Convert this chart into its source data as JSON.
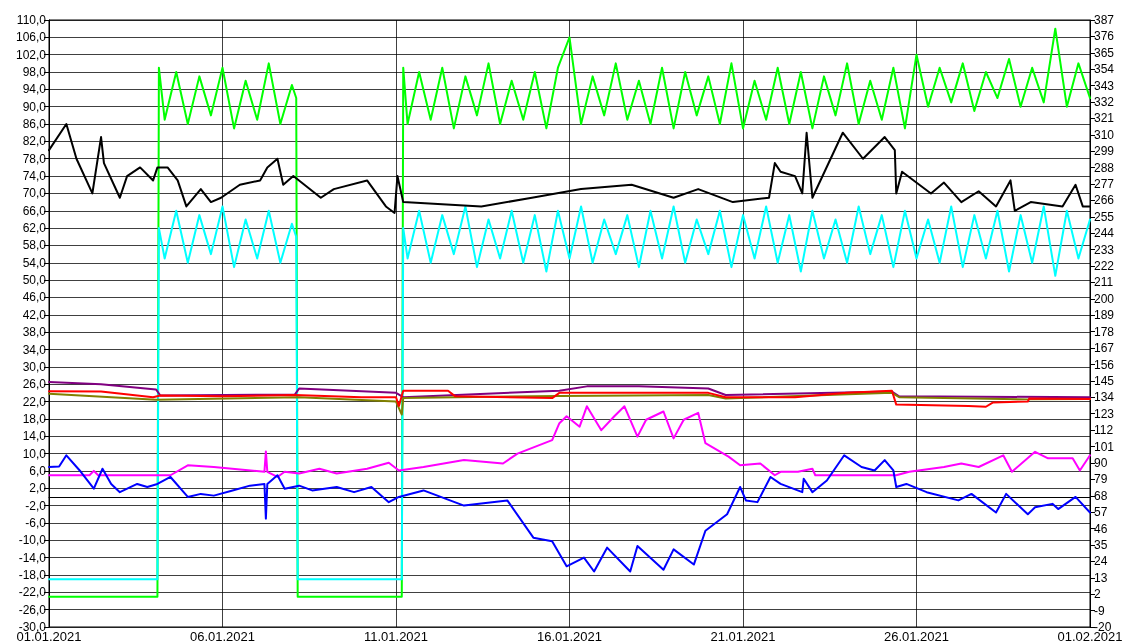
{
  "chart_data": {
    "type": "line",
    "grid": true,
    "line_style": "solid",
    "xlim": [
      "2021-01-01",
      "2021-01-31"
    ],
    "xticks": [
      {
        "value": "2021-01-01",
        "label": "01.01.2021"
      },
      {
        "value": "2021-01-06",
        "label": "06.01.2021"
      },
      {
        "value": "2021-01-11",
        "label": "11.01.2021"
      },
      {
        "value": "2021-01-16",
        "label": "16.01.2021"
      },
      {
        "value": "2021-01-21",
        "label": "21.01.2021"
      },
      {
        "value": "2021-01-26",
        "label": "26.01.2021"
      },
      {
        "value": "2021-01-31",
        "label": "01.02.2021"
      }
    ],
    "ylim": [
      -30,
      110
    ],
    "yticks": [
      {
        "value": -30,
        "label": "-30,0"
      },
      {
        "value": -26,
        "label": "-26,0"
      },
      {
        "value": -22,
        "label": "-22,0"
      },
      {
        "value": -18,
        "label": "-18,0"
      },
      {
        "value": -14,
        "label": "-14,0"
      },
      {
        "value": -10,
        "label": "-10,0"
      },
      {
        "value": -6,
        "label": "-6,0"
      },
      {
        "value": -2,
        "label": "-2,0"
      },
      {
        "value": 2,
        "label": "2,0"
      },
      {
        "value": 6,
        "label": "6,0"
      },
      {
        "value": 10,
        "label": "10,0"
      },
      {
        "value": 14,
        "label": "14,0"
      },
      {
        "value": 18,
        "label": "18,0"
      },
      {
        "value": 22,
        "label": "22,0"
      },
      {
        "value": 26,
        "label": "26,0"
      },
      {
        "value": 30,
        "label": "30,0"
      },
      {
        "value": 34,
        "label": "34,0"
      },
      {
        "value": 38,
        "label": "38,0"
      },
      {
        "value": 42,
        "label": "42,0"
      },
      {
        "value": 46,
        "label": "46,0"
      },
      {
        "value": 50,
        "label": "50,0"
      },
      {
        "value": 54,
        "label": "54,0"
      },
      {
        "value": 58,
        "label": "58,0"
      },
      {
        "value": 62,
        "label": "62,0"
      },
      {
        "value": 66,
        "label": "66,0"
      },
      {
        "value": 70,
        "label": "70,0"
      },
      {
        "value": 74,
        "label": "74,0"
      },
      {
        "value": 78,
        "label": "78,0"
      },
      {
        "value": 82,
        "label": "82,0"
      },
      {
        "value": 86,
        "label": "86,0"
      },
      {
        "value": 90,
        "label": "90,0"
      },
      {
        "value": 94,
        "label": "94,0"
      },
      {
        "value": 98,
        "label": "98,0"
      },
      {
        "value": 102,
        "label": "102,0"
      },
      {
        "value": 106,
        "label": "106,0"
      },
      {
        "value": 110,
        "label": "110,0"
      }
    ],
    "y2lim": [
      -20,
      387
    ],
    "y2ticks": [
      -20,
      -9,
      2,
      13,
      24,
      35,
      46,
      57,
      68,
      79,
      90,
      101,
      112,
      123,
      134,
      145,
      156,
      167,
      178,
      189,
      200,
      211,
      222,
      233,
      244,
      255,
      266,
      277,
      288,
      299,
      310,
      321,
      332,
      343,
      354,
      365,
      376,
      387
    ],
    "series": [
      {
        "color": "#00ff00",
        "x": [
          "2021-01-01T00:00",
          "2021-01-04T03:00",
          "2021-01-04T04:00",
          "2021-01-04T08:00",
          "2021-01-04T16:00",
          "2021-01-05T00:00",
          "2021-01-05T08:00",
          "2021-01-05T16:00",
          "2021-01-06T00:00",
          "2021-01-06T08:00",
          "2021-01-06T16:00",
          "2021-01-07T00:00",
          "2021-01-07T08:00",
          "2021-01-07T16:00",
          "2021-01-08T00:00",
          "2021-01-08T03:00",
          "2021-01-08T04:00",
          "2021-01-11T04:00",
          "2021-01-11T05:00",
          "2021-01-11T08:00",
          "2021-01-11T16:00",
          "2021-01-12T00:00",
          "2021-01-12T08:00",
          "2021-01-12T16:00",
          "2021-01-13T00:00",
          "2021-01-13T08:00",
          "2021-01-13T16:00",
          "2021-01-14T00:00",
          "2021-01-14T08:00",
          "2021-01-14T16:00",
          "2021-01-15T00:00",
          "2021-01-15T08:00",
          "2021-01-15T16:00",
          "2021-01-16T00:00",
          "2021-01-16T08:00",
          "2021-01-16T16:00",
          "2021-01-17T00:00",
          "2021-01-17T08:00",
          "2021-01-17T16:00",
          "2021-01-18T00:00",
          "2021-01-18T08:00",
          "2021-01-18T16:00",
          "2021-01-19T00:00",
          "2021-01-19T08:00",
          "2021-01-19T16:00",
          "2021-01-20T00:00",
          "2021-01-20T08:00",
          "2021-01-20T16:00",
          "2021-01-21T00:00",
          "2021-01-21T08:00",
          "2021-01-21T16:00",
          "2021-01-22T00:00",
          "2021-01-22T08:00",
          "2021-01-22T16:00",
          "2021-01-23T00:00",
          "2021-01-23T08:00",
          "2021-01-23T16:00",
          "2021-01-24T00:00",
          "2021-01-24T08:00",
          "2021-01-24T16:00",
          "2021-01-25T00:00",
          "2021-01-25T08:00",
          "2021-01-25T16:00",
          "2021-01-26T00:00",
          "2021-01-26T08:00",
          "2021-01-26T16:00",
          "2021-01-27T00:00",
          "2021-01-27T08:00",
          "2021-01-27T16:00",
          "2021-01-28T00:00",
          "2021-01-28T08:00",
          "2021-01-28T16:00",
          "2021-01-29T00:00",
          "2021-01-29T08:00",
          "2021-01-29T16:00",
          "2021-01-30T00:00",
          "2021-01-30T08:00",
          "2021-01-30T16:00",
          "2021-01-31T00:00"
        ],
        "values": [
          -23,
          -23,
          99,
          87,
          98,
          86,
          97,
          88,
          99,
          85,
          96,
          87,
          100,
          86,
          95,
          92,
          -23,
          -23,
          99,
          86,
          98,
          87,
          99,
          85,
          97,
          88,
          100,
          86,
          96,
          87,
          98,
          85,
          99,
          106,
          86,
          97,
          88,
          100,
          87,
          96,
          86,
          99,
          85,
          98,
          88,
          97,
          86,
          100,
          85,
          96,
          87,
          99,
          86,
          98,
          85,
          97,
          88,
          100,
          86,
          96,
          87,
          99,
          85,
          102,
          90,
          99,
          91,
          100,
          89,
          98,
          92,
          101,
          90,
          99,
          91,
          108,
          90,
          100,
          92
        ]
      },
      {
        "color": "#00ffff",
        "x": [
          "2021-01-01T00:00",
          "2021-01-04T03:00",
          "2021-01-04T04:00",
          "2021-01-04T08:00",
          "2021-01-04T16:00",
          "2021-01-05T00:00",
          "2021-01-05T08:00",
          "2021-01-05T16:00",
          "2021-01-06T00:00",
          "2021-01-06T08:00",
          "2021-01-06T16:00",
          "2021-01-07T00:00",
          "2021-01-07T08:00",
          "2021-01-07T16:00",
          "2021-01-08T00:00",
          "2021-01-08T03:00",
          "2021-01-08T04:00",
          "2021-01-11T04:00",
          "2021-01-11T05:00",
          "2021-01-11T08:00",
          "2021-01-11T16:00",
          "2021-01-12T00:00",
          "2021-01-12T08:00",
          "2021-01-12T16:00",
          "2021-01-13T00:00",
          "2021-01-13T08:00",
          "2021-01-13T16:00",
          "2021-01-14T00:00",
          "2021-01-14T08:00",
          "2021-01-14T16:00",
          "2021-01-15T00:00",
          "2021-01-15T08:00",
          "2021-01-15T16:00",
          "2021-01-16T00:00",
          "2021-01-16T08:00",
          "2021-01-16T16:00",
          "2021-01-17T00:00",
          "2021-01-17T08:00",
          "2021-01-17T16:00",
          "2021-01-18T00:00",
          "2021-01-18T08:00",
          "2021-01-18T16:00",
          "2021-01-19T00:00",
          "2021-01-19T08:00",
          "2021-01-19T16:00",
          "2021-01-20T00:00",
          "2021-01-20T08:00",
          "2021-01-20T16:00",
          "2021-01-21T00:00",
          "2021-01-21T08:00",
          "2021-01-21T16:00",
          "2021-01-22T00:00",
          "2021-01-22T08:00",
          "2021-01-22T16:00",
          "2021-01-23T00:00",
          "2021-01-23T08:00",
          "2021-01-23T16:00",
          "2021-01-24T00:00",
          "2021-01-24T08:00",
          "2021-01-24T16:00",
          "2021-01-25T00:00",
          "2021-01-25T08:00",
          "2021-01-25T16:00",
          "2021-01-26T00:00",
          "2021-01-26T08:00",
          "2021-01-26T16:00",
          "2021-01-27T00:00",
          "2021-01-27T08:00",
          "2021-01-27T16:00",
          "2021-01-28T00:00",
          "2021-01-28T08:00",
          "2021-01-28T16:00",
          "2021-01-29T00:00",
          "2021-01-29T08:00",
          "2021-01-29T16:00",
          "2021-01-30T00:00",
          "2021-01-30T08:00",
          "2021-01-30T16:00",
          "2021-01-31T00:00"
        ],
        "values": [
          -19,
          -19,
          62,
          55,
          66,
          54,
          65,
          56,
          67,
          53,
          64,
          55,
          66,
          54,
          63,
          60,
          -19,
          -19,
          62,
          55,
          66,
          54,
          65,
          56,
          67,
          53,
          64,
          55,
          66,
          54,
          65,
          52,
          66,
          55,
          67,
          54,
          64,
          56,
          65,
          53,
          66,
          55,
          67,
          54,
          64,
          56,
          66,
          53,
          65,
          55,
          67,
          54,
          65,
          52,
          66,
          55,
          64,
          54,
          67,
          56,
          65,
          53,
          66,
          55,
          64,
          54,
          67,
          53,
          65,
          55,
          66,
          52,
          65,
          54,
          67,
          51,
          66,
          55,
          64
        ]
      },
      {
        "color": "#000000",
        "x": [
          "2021-01-01T00:00",
          "2021-01-01T12:00",
          "2021-01-01T19:00",
          "2021-01-02T06:00",
          "2021-01-02T12:00",
          "2021-01-02T14:00",
          "2021-01-03T01:00",
          "2021-01-03T06:00",
          "2021-01-03T15:00",
          "2021-01-04T00:00",
          "2021-01-04T03:00",
          "2021-01-04T10:00",
          "2021-01-04T17:00",
          "2021-01-04T23:00",
          "2021-01-05T09:00",
          "2021-01-05T16:00",
          "2021-01-05T23:00",
          "2021-01-06T12:00",
          "2021-01-07T02:00",
          "2021-01-07T07:00",
          "2021-01-07T14:00",
          "2021-01-07T18:00",
          "2021-01-08T01:00",
          "2021-01-08T20:00",
          "2021-01-09T05:00",
          "2021-01-10T04:00",
          "2021-01-10T17:00",
          "2021-01-10T23:00",
          "2021-01-11T01:00",
          "2021-01-11T05:00",
          "2021-01-13T11:00",
          "2021-01-14T22:00",
          "2021-01-16T08:00",
          "2021-01-17T19:00",
          "2021-01-19T00:00",
          "2021-01-19T17:00",
          "2021-01-20T17:00",
          "2021-01-21T18:00",
          "2021-01-21T22:00",
          "2021-01-22T02:00",
          "2021-01-22T12:00",
          "2021-01-22T17:00",
          "2021-01-22T20:00",
          "2021-01-23T00:00",
          "2021-01-23T21:00",
          "2021-01-24T11:00",
          "2021-01-25T02:00",
          "2021-01-25T09:00",
          "2021-01-25T10:00",
          "2021-01-25T14:00",
          "2021-01-26T10:00",
          "2021-01-26T19:00",
          "2021-01-27T07:00",
          "2021-01-27T19:00",
          "2021-01-28T07:00",
          "2021-01-28T17:00",
          "2021-01-28T20:00",
          "2021-01-29T07:00",
          "2021-01-30T05:00",
          "2021-01-30T14:00",
          "2021-01-30T19:00",
          "2021-01-31T00:00"
        ],
        "values": [
          80,
          86,
          78,
          70,
          83,
          77,
          69,
          74,
          76,
          73,
          76,
          76,
          73,
          67,
          71,
          68,
          69,
          72,
          73,
          76,
          78,
          72,
          74,
          69,
          71,
          73,
          67,
          65.5,
          74,
          68,
          67,
          69,
          71,
          72,
          69,
          71,
          68,
          69,
          77,
          75,
          74,
          70,
          84,
          69,
          84,
          78,
          83,
          80,
          70,
          75,
          70,
          72.5,
          68,
          70.5,
          67,
          73,
          66,
          68,
          67,
          72,
          67,
          67
        ]
      },
      {
        "color": "#800080",
        "x": [
          "2021-01-01T00:00",
          "2021-01-02T12:00",
          "2021-01-04T02:00",
          "2021-01-04T05:00",
          "2021-01-08T02:00",
          "2021-01-08T05:00",
          "2021-01-11T00:00",
          "2021-01-11T05:00",
          "2021-01-15T17:00",
          "2021-01-16T12:00",
          "2021-01-18T00:00",
          "2021-01-20T00:00",
          "2021-01-20T12:00",
          "2021-01-25T07:00",
          "2021-01-25T12:00",
          "2021-01-31T00:00"
        ],
        "values": [
          26.5,
          26,
          24.8,
          23.4,
          23.6,
          25,
          24,
          23,
          24.5,
          25.5,
          25.5,
          25,
          23.5,
          24.3,
          23.2,
          23
        ]
      },
      {
        "color": "#808000",
        "x": [
          "2021-01-01T00:00",
          "2021-01-04T02:00",
          "2021-01-08T05:00",
          "2021-01-11T00:00",
          "2021-01-11T04:00",
          "2021-01-11T05:00",
          "2021-01-15T17:00",
          "2021-01-20T00:00",
          "2021-01-20T12:00",
          "2021-01-25T07:00",
          "2021-01-25T12:00",
          "2021-01-29T05:00",
          "2021-01-31T00:00"
        ],
        "values": [
          23.8,
          22.4,
          23,
          22,
          19,
          22.8,
          23.3,
          23.5,
          22.7,
          24,
          23,
          22.5,
          22.6
        ]
      },
      {
        "color": "#ff0000",
        "x": [
          "2021-01-01T00:00",
          "2021-01-02T12:00",
          "2021-01-04T00:00",
          "2021-01-04T05:00",
          "2021-01-06T00:00",
          "2021-01-08T02:00",
          "2021-01-10T00:00",
          "2021-01-11T00:00",
          "2021-01-11T02:00",
          "2021-01-11T05:00",
          "2021-01-12T12:00",
          "2021-01-12T17:00",
          "2021-01-15T12:00",
          "2021-01-15T17:00",
          "2021-01-20T00:00",
          "2021-01-20T12:00",
          "2021-01-22T12:00",
          "2021-01-24T00:00",
          "2021-01-25T07:00",
          "2021-01-25T10:00",
          "2021-01-27T12:00",
          "2021-01-28T00:00",
          "2021-01-28T05:00",
          "2021-01-29T05:00",
          "2021-01-29T06:00",
          "2021-01-31T00:00"
        ],
        "values": [
          24.4,
          24.3,
          23,
          23.4,
          23.2,
          23.5,
          23,
          23,
          21,
          24.5,
          24.5,
          23.2,
          22.8,
          24,
          24,
          23,
          23,
          24,
          24.5,
          21.3,
          21,
          20.8,
          21.8,
          22,
          22.7,
          22.6
        ]
      },
      {
        "color": "#ff00ff",
        "x": [
          "2021-01-01T00:00",
          "2021-01-02T04:00",
          "2021-01-02T07:00",
          "2021-01-02T10:00",
          "2021-01-04T12:00",
          "2021-01-05T00:00",
          "2021-01-05T18:00",
          "2021-01-07T05:00",
          "2021-01-07T06:00",
          "2021-01-07T07:00",
          "2021-01-07T14:00",
          "2021-01-07T19:00",
          "2021-01-08T05:00",
          "2021-01-08T19:00",
          "2021-01-09T07:00",
          "2021-01-10T04:00",
          "2021-01-10T19:00",
          "2021-01-11T02:00",
          "2021-01-11T19:00",
          "2021-01-12T23:00",
          "2021-01-14T02:00",
          "2021-01-14T12:00",
          "2021-01-15T12:00",
          "2021-01-15T17:00",
          "2021-01-15T22:00",
          "2021-01-16T07:00",
          "2021-01-16T12:00",
          "2021-01-16T22:00",
          "2021-01-17T07:00",
          "2021-01-17T14:00",
          "2021-01-17T23:00",
          "2021-01-18T05:00",
          "2021-01-18T17:00",
          "2021-01-19T00:00",
          "2021-01-19T07:00",
          "2021-01-19T17:00",
          "2021-01-19T22:00",
          "2021-01-20T14:00",
          "2021-01-20T22:00",
          "2021-01-21T12:00",
          "2021-01-21T22:00",
          "2021-01-22T02:00",
          "2021-01-22T14:00",
          "2021-01-23T00:00",
          "2021-01-23T02:00",
          "2021-01-25T10:00",
          "2021-01-25T19:00",
          "2021-01-26T19:00",
          "2021-01-27T07:00",
          "2021-01-27T19:00",
          "2021-01-28T12:00",
          "2021-01-28T18:00",
          "2021-01-29T10:00",
          "2021-01-29T19:00",
          "2021-01-30T12:00",
          "2021-01-30T17:00",
          "2021-01-31T00:00"
        ],
        "values": [
          5,
          5,
          6,
          5,
          5,
          7.3,
          6.9,
          5.8,
          10.5,
          5.8,
          4.6,
          5.8,
          5.4,
          6.5,
          5.4,
          6.5,
          7.9,
          6.1,
          6.9,
          8.5,
          7.7,
          10,
          13.1,
          17,
          18.6,
          16.2,
          20.9,
          15.4,
          18.6,
          20.9,
          13.9,
          17.8,
          19.7,
          13.5,
          17.8,
          19.4,
          12.4,
          9.3,
          7.3,
          7.7,
          5,
          5.8,
          5.8,
          6.5,
          5,
          5,
          5.8,
          6.9,
          7.7,
          6.9,
          9.6,
          5.8,
          10.4,
          8.9,
          8.9,
          6.1,
          9.6
        ]
      },
      {
        "color": "#0000ff",
        "x": [
          "2021-01-01T00:00",
          "2021-01-01T07:00",
          "2021-01-01T12:00",
          "2021-01-01T22:00",
          "2021-01-02T07:00",
          "2021-01-02T13:00",
          "2021-01-02T19:00",
          "2021-01-03T01:00",
          "2021-01-03T13:00",
          "2021-01-03T20:00",
          "2021-01-04T03:00",
          "2021-01-04T12:00",
          "2021-01-05T00:00",
          "2021-01-05T09:00",
          "2021-01-05T18:00",
          "2021-01-06T07:00",
          "2021-01-06T19:00",
          "2021-01-07T05:00",
          "2021-01-07T06:00",
          "2021-01-07T07:00",
          "2021-01-07T14:00",
          "2021-01-07T19:00",
          "2021-01-08T05:00",
          "2021-01-08T14:00",
          "2021-01-09T07:00",
          "2021-01-09T19:00",
          "2021-01-10T07:00",
          "2021-01-10T19:00",
          "2021-01-11T02:00",
          "2021-01-11T19:00",
          "2021-01-12T23:00",
          "2021-01-14T05:00",
          "2021-01-14T23:00",
          "2021-01-15T12:00",
          "2021-01-15T22:00",
          "2021-01-16T10:00",
          "2021-01-16T17:00",
          "2021-01-17T02:00",
          "2021-01-17T18:00",
          "2021-01-17T23:00",
          "2021-01-18T17:00",
          "2021-01-19T00:00",
          "2021-01-19T14:00",
          "2021-01-19T22:00",
          "2021-01-20T13:00",
          "2021-01-20T22:00",
          "2021-01-21T02:00",
          "2021-01-21T10:00",
          "2021-01-21T19:00",
          "2021-01-22T02:00",
          "2021-01-22T17:00",
          "2021-01-22T18:00",
          "2021-01-23T00:00",
          "2021-01-23T10:00",
          "2021-01-23T22:00",
          "2021-01-24T10:00",
          "2021-01-24T19:00",
          "2021-01-25T02:00",
          "2021-01-25T08:00",
          "2021-01-25T10:00",
          "2021-01-25T17:00",
          "2021-01-26T07:00",
          "2021-01-27T05:00",
          "2021-01-27T14:00",
          "2021-01-28T07:00",
          "2021-01-28T14:00",
          "2021-01-29T05:00",
          "2021-01-29T10:00",
          "2021-01-29T22:00",
          "2021-01-30T02:00",
          "2021-01-30T14:00",
          "2021-01-31T00:00"
        ],
        "values": [
          6.9,
          7,
          9.6,
          5.8,
          1.9,
          6.5,
          3,
          1.1,
          3,
          2.3,
          3,
          4.6,
          0,
          0.7,
          0.3,
          1.5,
          2.6,
          3,
          -5,
          3,
          5,
          1.9,
          2.6,
          1.5,
          2.3,
          1.1,
          2.3,
          -1.2,
          0,
          1.5,
          -2,
          -0.8,
          -9.4,
          -10.2,
          -16,
          -14,
          -17.2,
          -11.7,
          -17.2,
          -11.3,
          -16.8,
          -12.1,
          -15.6,
          -7.8,
          -4,
          2.3,
          -0.8,
          -1.2,
          4.6,
          3,
          1.1,
          4.2,
          1.1,
          3.8,
          9.6,
          6.9,
          6.1,
          8.5,
          6.1,
          2.3,
          3,
          1.1,
          -0.8,
          0.7,
          -3.6,
          0.7,
          -4,
          -2.4,
          -1.6,
          -2.8,
          0,
          -3.6
        ]
      }
    ]
  }
}
